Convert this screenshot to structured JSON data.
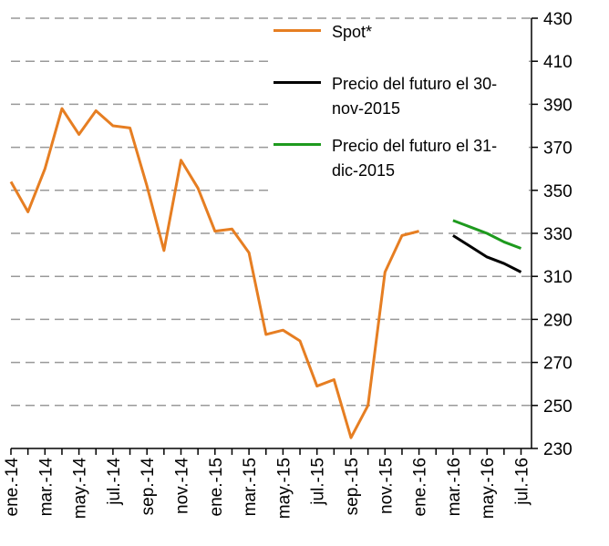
{
  "chart_data": {
    "type": "line",
    "categories": [
      "ene.-14",
      null,
      "mar.-14",
      null,
      "may.-14",
      null,
      "jul.-14",
      null,
      "sep.-14",
      null,
      "nov.-14",
      null,
      "ene.-15",
      null,
      "mar.-15",
      null,
      "may.-15",
      null,
      "jul.-15",
      null,
      "sep.-15",
      null,
      "nov.-15",
      null,
      "ene.-16",
      null,
      "mar.-16",
      null,
      "may.-16",
      null,
      "jul.-16"
    ],
    "series": [
      {
        "name": "Spot*",
        "color": "#e67e22",
        "values": [
          354,
          340,
          360,
          388,
          376,
          387,
          380,
          379,
          352,
          322,
          364,
          351,
          331,
          332,
          321,
          283,
          285,
          280,
          259,
          262,
          235,
          250,
          312,
          329,
          331,
          null,
          null,
          null,
          null,
          null,
          null
        ]
      },
      {
        "name": "Precio del futuro el 30-nov-2015",
        "color": "#000000",
        "values": [
          null,
          null,
          null,
          null,
          null,
          null,
          null,
          null,
          null,
          null,
          null,
          null,
          null,
          null,
          null,
          null,
          null,
          null,
          null,
          null,
          null,
          null,
          null,
          null,
          null,
          null,
          329,
          324,
          319,
          316,
          312
        ]
      },
      {
        "name": "Precio del futuro el 31-dic-2015",
        "color": "#1e9a1e",
        "values": [
          null,
          null,
          null,
          null,
          null,
          null,
          null,
          null,
          null,
          null,
          null,
          null,
          null,
          null,
          null,
          null,
          null,
          null,
          null,
          null,
          null,
          null,
          null,
          null,
          null,
          null,
          336,
          333,
          330,
          326,
          323
        ]
      }
    ],
    "ylim": [
      230,
      430
    ],
    "yticks": [
      230,
      250,
      270,
      290,
      310,
      330,
      350,
      370,
      390,
      410,
      430
    ],
    "grid": true
  }
}
